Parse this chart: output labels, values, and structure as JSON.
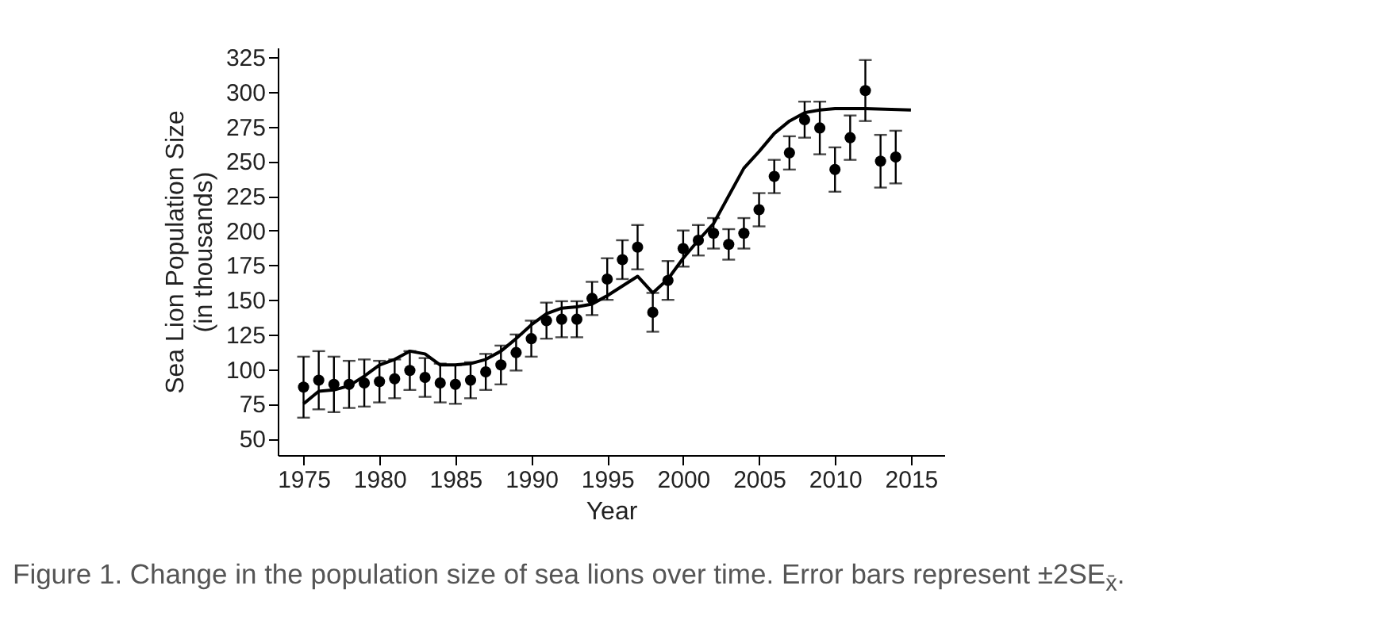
{
  "chart_data": {
    "type": "scatter",
    "xlabel": "Year",
    "ylabel": "Sea Lion Population Size\n(in thousands)",
    "annotations": [
      "Figure 1. Change in the population size of sea lions over time. Error bars represent ±2SE$_{x̄}$."
    ],
    "xlim": [
      1973.3,
      2017.2
    ],
    "xticks": [
      1975,
      1980,
      1985,
      1990,
      1995,
      2000,
      2005,
      2010,
      2015
    ],
    "ylim": [
      38,
      332
    ],
    "yticks": [
      50,
      75,
      100,
      125,
      150,
      175,
      200,
      225,
      250,
      275,
      300,
      325
    ],
    "grid": false,
    "series": [
      {
        "marker": "circle",
        "color": "#000000",
        "x": [
          1975,
          1976,
          1977,
          1978,
          1979,
          1980,
          1981,
          1982,
          1983,
          1984,
          1985,
          1986,
          1987,
          1988,
          1989,
          1990,
          1991,
          1992,
          1993,
          1994,
          1995,
          1996,
          1997,
          1998,
          1999,
          2000,
          2001,
          2002,
          2003,
          2004,
          2005,
          2006,
          2007,
          2008,
          2009,
          2010,
          2011,
          2012,
          2013,
          2014
        ],
        "values": [
          87,
          92,
          89,
          89,
          90,
          91,
          93,
          99,
          94,
          90,
          89,
          92,
          98,
          103,
          112,
          122,
          135,
          136,
          136,
          151,
          165,
          179,
          188,
          141,
          164,
          187,
          193,
          198,
          190,
          198,
          215,
          239,
          256,
          280,
          274,
          244,
          267,
          301,
          250,
          253
        ],
        "errors": [
          22,
          21,
          20,
          17,
          17,
          15,
          14,
          14,
          14,
          14,
          14,
          13,
          13,
          14,
          13,
          13,
          13,
          13,
          13,
          12,
          15,
          14,
          16,
          14,
          14,
          13,
          11,
          11,
          11,
          11,
          12,
          12,
          12,
          13,
          19,
          16,
          16,
          22,
          19,
          19
        ]
      },
      {
        "type": "line",
        "color": "#000000",
        "line_style": "solid",
        "x": [
          1975,
          1976,
          1977,
          1978,
          1979,
          1980,
          1981,
          1982,
          1983,
          1984,
          1985,
          1986,
          1987,
          1988,
          1989,
          1990,
          1991,
          1992,
          1993,
          1994,
          1995,
          1996,
          1997,
          1998,
          1999,
          2000,
          2001,
          2002,
          2003,
          2004,
          2005,
          2006,
          2007,
          2008,
          2009,
          2010,
          2011,
          2012,
          2015
        ],
        "values": [
          75,
          84,
          85,
          88,
          95,
          103,
          107,
          113,
          111,
          103,
          103,
          104,
          107,
          113,
          122,
          132,
          140,
          144,
          145,
          147,
          153,
          160,
          167,
          155,
          165,
          180,
          193,
          205,
          225,
          245,
          257,
          270,
          279,
          285,
          287,
          288,
          288,
          288,
          287
        ]
      }
    ]
  }
}
